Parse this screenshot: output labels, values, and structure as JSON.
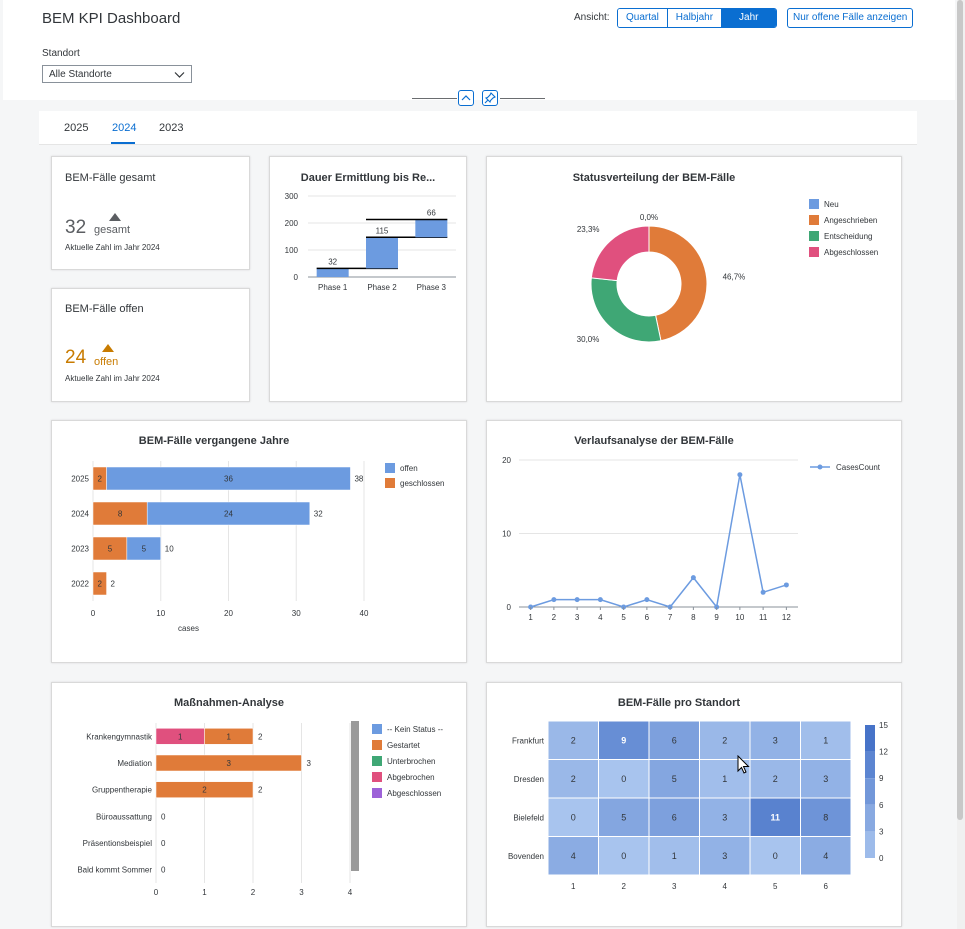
{
  "header": {
    "title": "BEM KPI Dashboard",
    "ansicht_label": "Ansicht:",
    "view_options": [
      "Quartal",
      "Halbjahr",
      "Jahr"
    ],
    "active_view": "Jahr",
    "open_cases_button": "Nur offene Fälle anzeigen",
    "standort_label": "Standort",
    "standort_value": "Alle Standorte"
  },
  "tabs": [
    "2025",
    "2024",
    "2023"
  ],
  "active_tab": "2024",
  "kpi_total": {
    "title": "BEM-Fälle gesamt",
    "value": "32",
    "unit": "gesamt",
    "subtitle": "Aktuelle Zahl im Jahr 2024"
  },
  "kpi_open": {
    "title": "BEM-Fälle offen",
    "value": "24",
    "unit": "offen",
    "subtitle": "Aktuelle Zahl im Jahr 2024",
    "color": "#c87b00"
  },
  "colors": {
    "blue": "#6c9be0",
    "orange": "#e07b39",
    "green": "#3fa775",
    "pink": "#e0507e",
    "purple": "#9d62d8",
    "accent": "#0a6ed1"
  },
  "chart_data": [
    {
      "id": "waterfall",
      "type": "bar",
      "title": "Dauer Ermittlung bis Re...",
      "categories": [
        "Phase 1",
        "Phase 2",
        "Phase 3"
      ],
      "values": [
        32,
        115,
        66
      ],
      "yticks": [
        "0",
        "100",
        "200",
        "300"
      ],
      "ylim": [
        0,
        300
      ]
    },
    {
      "id": "status_donut",
      "type": "pie",
      "title": "Statusverteilung der BEM-Fälle",
      "labels": [
        "Neu",
        "Angeschrieben",
        "Entscheidung",
        "Abgeschlossen"
      ],
      "values": [
        0.0,
        46.7,
        30.0,
        23.3
      ],
      "value_labels": [
        "0,0%",
        "46,7%",
        "30,0%",
        "23,3%"
      ],
      "legend": "right"
    },
    {
      "id": "years_bar",
      "type": "bar",
      "title": "BEM-Fälle vergangene Jahre",
      "categories": [
        "2025",
        "2024",
        "2023",
        "2022"
      ],
      "series": [
        {
          "name": "geschlossen",
          "values": [
            2,
            8,
            5,
            2
          ]
        },
        {
          "name": "offen",
          "values": [
            36,
            24,
            5,
            0
          ]
        }
      ],
      "totals": [
        38,
        32,
        10,
        2
      ],
      "xlabel": "cases",
      "xticks": [
        "0",
        "10",
        "20",
        "30",
        "40"
      ],
      "xlim": [
        0,
        40
      ],
      "legend": "right"
    },
    {
      "id": "trend_line",
      "type": "line",
      "title": "Verlaufsanalyse der BEM-Fälle",
      "x": [
        "1",
        "2",
        "3",
        "4",
        "5",
        "6",
        "7",
        "8",
        "9",
        "10",
        "11",
        "12"
      ],
      "series": [
        {
          "name": "CasesCount",
          "values": [
            0,
            1,
            1,
            1,
            0,
            1,
            0,
            4,
            0,
            18,
            2,
            3
          ]
        }
      ],
      "yticks": [
        "0",
        "10",
        "20"
      ],
      "ylim": [
        0,
        20
      ],
      "legend": "top-right"
    },
    {
      "id": "measures_bar",
      "type": "bar",
      "title": "Maßnahmen-Analyse",
      "categories": [
        "Krankengymnastik",
        "Mediation",
        "Gruppentherapie",
        "Büroaussattung",
        "Präsentionsbeispiel",
        "Bald kommt Sommer"
      ],
      "series": [
        {
          "name": "-- Kein Status --",
          "values": [
            0,
            0,
            0,
            0,
            0,
            0
          ]
        },
        {
          "name": "Gestartet",
          "values": [
            1,
            3,
            2,
            0,
            0,
            0
          ]
        },
        {
          "name": "Unterbrochen",
          "values": [
            0,
            0,
            0,
            0,
            0,
            0
          ]
        },
        {
          "name": "Abgebrochen",
          "values": [
            1,
            0,
            0,
            0,
            0,
            0
          ]
        },
        {
          "name": "Abgeschlossen",
          "values": [
            0,
            0,
            0,
            0,
            0,
            0
          ]
        }
      ],
      "totals": [
        2,
        3,
        2,
        0,
        0,
        0
      ],
      "xticks": [
        "0",
        "1",
        "2",
        "3",
        "4"
      ],
      "xlim": [
        0,
        4
      ],
      "legend": "right"
    },
    {
      "id": "heatmap",
      "type": "heatmap",
      "title": "BEM-Fälle pro Standort",
      "rows": [
        "Frankfurt",
        "Dresden",
        "Bielefeld",
        "Bovenden"
      ],
      "columns": [
        "1",
        "2",
        "3",
        "4",
        "5",
        "6"
      ],
      "values": [
        [
          2,
          9,
          6,
          2,
          3,
          1
        ],
        [
          2,
          0,
          5,
          1,
          2,
          3
        ],
        [
          0,
          5,
          6,
          3,
          11,
          8
        ],
        [
          4,
          0,
          1,
          3,
          0,
          4
        ]
      ],
      "scale_ticks": [
        "15",
        "12",
        "9",
        "6",
        "3",
        "0"
      ],
      "range": [
        0,
        15
      ]
    }
  ]
}
